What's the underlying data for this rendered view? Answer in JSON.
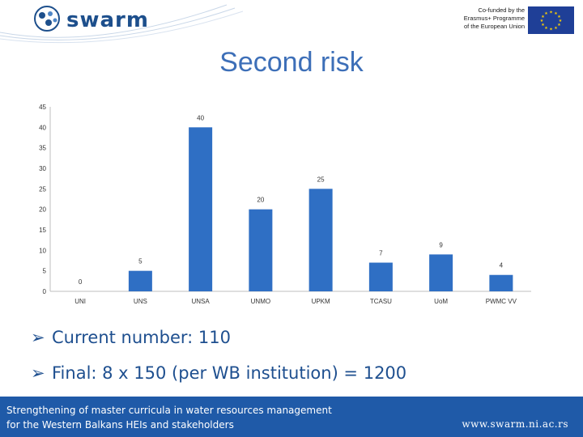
{
  "header": {
    "logo_text": "swarm",
    "eu_line1": "Co-funded by the",
    "eu_line2": "Erasmus+ Programme",
    "eu_line3": "of the European Union"
  },
  "chart_data": {
    "type": "bar",
    "title": "Second risk",
    "categories": [
      "UNI",
      "UNS",
      "UNSA",
      "UNMO",
      "UPKM",
      "TCASU",
      "UoM",
      "PWMC VV"
    ],
    "values": [
      0,
      5,
      40,
      20,
      25,
      7,
      9,
      4
    ],
    "ylim": [
      0,
      45
    ],
    "yticks": [
      0,
      5,
      10,
      15,
      20,
      25,
      30,
      35,
      40,
      45
    ],
    "grid": false,
    "legend": "none",
    "colors": {
      "bar": "#2f6fc4",
      "axis": "#bfbfbf"
    }
  },
  "bullets": [
    "Current number: 110",
    "Final: 8 x 150 (per WB institution) = 1200"
  ],
  "footer": {
    "line1": "Strengthening of master curricula in water resources  management",
    "line2": "for the Western Balkans HEIs and stakeholders",
    "url": "www.swarm.ni.ac.rs"
  }
}
